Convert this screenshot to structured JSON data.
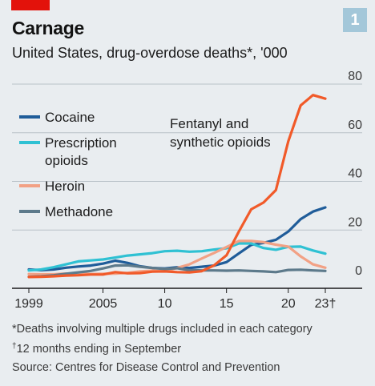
{
  "badge": "1",
  "chart_data": {
    "type": "line",
    "title": "Carnage",
    "subtitle": "United States, drug-overdose deaths*, '000",
    "xlabel": "",
    "ylabel": "",
    "xlim": [
      1999,
      2023
    ],
    "ylim": [
      0,
      80
    ],
    "y_ticks": [
      0,
      20,
      40,
      60,
      80
    ],
    "x_ticks": [
      {
        "value": 1999,
        "label": "1999"
      },
      {
        "value": 2005,
        "label": "2005"
      },
      {
        "value": 2010,
        "label": "10"
      },
      {
        "value": 2015,
        "label": "15"
      },
      {
        "value": 2020,
        "label": "20"
      },
      {
        "value": 2023,
        "label": "23†"
      }
    ],
    "grid": "horizontal",
    "legend_position": "top-left",
    "x": [
      1999,
      2000,
      2001,
      2002,
      2003,
      2004,
      2005,
      2006,
      2007,
      2008,
      2009,
      2010,
      2011,
      2012,
      2013,
      2014,
      2015,
      2016,
      2017,
      2018,
      2019,
      2020,
      2021,
      2022,
      2023
    ],
    "series": [
      {
        "name": "Cocaine",
        "color": "#1f5c99",
        "values": [
          3.8,
          3.5,
          3.8,
          4.5,
          5.0,
          5.4,
          6.2,
          7.4,
          6.5,
          5.1,
          4.4,
          4.2,
          4.7,
          4.4,
          4.9,
          5.4,
          6.8,
          10.4,
          13.9,
          14.7,
          16.0,
          19.4,
          24.5,
          27.6,
          29.3
        ]
      },
      {
        "name": "Prescription opioids",
        "color": "#2fc1d3",
        "values": [
          3.4,
          3.8,
          4.7,
          5.9,
          7.1,
          7.5,
          7.9,
          8.7,
          9.5,
          10.0,
          10.5,
          11.3,
          11.5,
          11.1,
          11.3,
          12.0,
          12.5,
          14.5,
          14.5,
          12.6,
          11.9,
          13.1,
          13.2,
          11.6,
          10.3
        ]
      },
      {
        "name": "Heroin",
        "color": "#f2a185",
        "values": [
          1.9,
          1.8,
          1.8,
          2.1,
          2.1,
          1.9,
          2.0,
          2.1,
          2.4,
          3.0,
          3.3,
          3.0,
          4.4,
          5.9,
          8.3,
          10.6,
          13.0,
          15.5,
          15.5,
          15.0,
          14.0,
          13.2,
          9.2,
          5.9,
          4.5
        ]
      },
      {
        "name": "Methadone",
        "color": "#5d7a8b",
        "values": [
          0.8,
          1.0,
          1.4,
          2.0,
          2.6,
          3.2,
          4.2,
          5.4,
          5.5,
          4.9,
          4.4,
          4.0,
          4.3,
          3.5,
          3.4,
          3.4,
          3.3,
          3.4,
          3.2,
          3.0,
          2.7,
          3.6,
          3.7,
          3.4,
          3.2
        ]
      },
      {
        "name": "Fentanyl and synthetic opioids",
        "color": "#f15a29",
        "values": [
          0.7,
          0.8,
          1.0,
          1.3,
          1.4,
          1.7,
          1.7,
          2.7,
          2.2,
          2.3,
          2.9,
          3.0,
          2.7,
          2.6,
          3.1,
          5.5,
          9.6,
          19.4,
          28.5,
          31.3,
          36.4,
          56.5,
          71.2,
          75.5,
          74.0
        ]
      }
    ],
    "legend": [
      {
        "name": "Cocaine",
        "lines": [
          "Cocaine"
        ],
        "color": "#1f5c99"
      },
      {
        "name": "Prescription opioids",
        "lines": [
          "Prescription",
          "opioids"
        ],
        "color": "#2fc1d3"
      },
      {
        "name": "Heroin",
        "lines": [
          "Heroin"
        ],
        "color": "#f2a185"
      },
      {
        "name": "Methadone",
        "lines": [
          "Methadone"
        ],
        "color": "#5d7a8b"
      }
    ],
    "annotation": {
      "lines": [
        "Fentanyl and",
        "synthetic opioids"
      ],
      "series": "Fentanyl and synthetic opioids"
    }
  },
  "footer": {
    "note_1": "*Deaths involving multiple drugs included in each category",
    "note_2_mark": "†",
    "note_2": "12 months ending in September",
    "source": "Source: Centres for Disease Control and Prevention"
  },
  "colors": {
    "accent_red": "#e3120b",
    "badge_blue": "#a3c7d9",
    "background": "#e9edf0"
  }
}
